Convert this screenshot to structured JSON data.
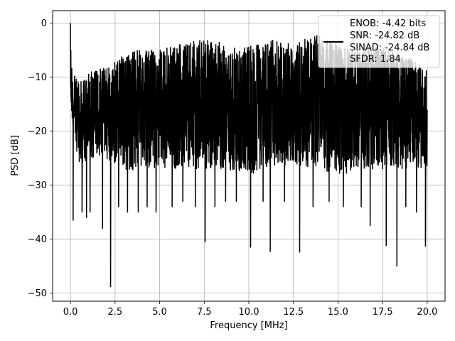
{
  "chart_data": {
    "type": "line",
    "xlabel": "Frequency [MHz]",
    "ylabel": "PSD [dB]",
    "xlim": [
      -1.0,
      21.0
    ],
    "ylim": [
      -51.5,
      2.3
    ],
    "xticks": [
      0.0,
      2.5,
      5.0,
      7.5,
      10.0,
      12.5,
      15.0,
      17.5,
      20.0
    ],
    "xtick_labels": [
      "0.0",
      "2.5",
      "5.0",
      "7.5",
      "10.0",
      "12.5",
      "15.0",
      "17.5",
      "20.0"
    ],
    "yticks": [
      0,
      -10,
      -20,
      -30,
      -40,
      -50
    ],
    "ytick_labels": [
      "0",
      "−10",
      "−20",
      "−30",
      "−40",
      "−50"
    ],
    "grid": true,
    "legend_placement": "upper right",
    "legend_lines": [
      "ENOB: -4.42 bits",
      "SNR: -24.82 dB",
      "SINAD: -24.84 dB",
      "SFDR: 1.84"
    ],
    "series": [
      {
        "color": "#000000",
        "x_range": [
          0.0,
          20.0
        ],
        "trace_description": "dense noise-like PSD trace, mostly oscillating between about -8 dB and -27 dB",
        "upper_envelope": [
          [
            0.0,
            0.0
          ],
          [
            0.1,
            -9
          ],
          [
            0.5,
            -11
          ],
          [
            1.0,
            -9
          ],
          [
            2.0,
            -8
          ],
          [
            3.0,
            -6
          ],
          [
            3.5,
            -5
          ],
          [
            5.0,
            -5
          ],
          [
            6.0,
            -4
          ],
          [
            7.5,
            -3
          ],
          [
            9.0,
            -4
          ],
          [
            10.5,
            -4
          ],
          [
            11.5,
            -3
          ],
          [
            12.5,
            -4
          ],
          [
            13.7,
            -2
          ],
          [
            15.0,
            -4
          ],
          [
            16.0,
            -5
          ],
          [
            17.0,
            -4
          ],
          [
            18.0,
            -5
          ],
          [
            19.0,
            -6
          ],
          [
            20.0,
            -9
          ]
        ],
        "lower_envelope": [
          [
            0.0,
            -16
          ],
          [
            0.5,
            -27
          ],
          [
            1.0,
            -25
          ],
          [
            2.0,
            -25
          ],
          [
            3.0,
            -28
          ],
          [
            5.0,
            -27
          ],
          [
            7.5,
            -27
          ],
          [
            10.0,
            -28
          ],
          [
            12.5,
            -26
          ],
          [
            15.0,
            -28
          ],
          [
            17.5,
            -27
          ],
          [
            20.0,
            -27
          ]
        ],
        "notable_dips": [
          [
            0.15,
            -36.5
          ],
          [
            0.65,
            -35
          ],
          [
            0.9,
            -36
          ],
          [
            1.1,
            -35
          ],
          [
            1.8,
            -38
          ],
          [
            2.25,
            -48.8
          ],
          [
            2.7,
            -34
          ],
          [
            3.2,
            -35
          ],
          [
            3.8,
            -35
          ],
          [
            4.3,
            -34
          ],
          [
            4.8,
            -35
          ],
          [
            5.7,
            -34
          ],
          [
            6.3,
            -33
          ],
          [
            7.0,
            -34
          ],
          [
            7.55,
            -40.5
          ],
          [
            8.1,
            -34
          ],
          [
            8.7,
            -33
          ],
          [
            9.3,
            -33
          ],
          [
            10.1,
            -41.5
          ],
          [
            10.8,
            -33
          ],
          [
            11.2,
            -42.3
          ],
          [
            12.0,
            -33
          ],
          [
            12.85,
            -42.4
          ],
          [
            13.6,
            -34
          ],
          [
            14.5,
            -33
          ],
          [
            15.3,
            -34
          ],
          [
            16.3,
            -34
          ],
          [
            16.8,
            -37.5
          ],
          [
            17.7,
            -41.2
          ],
          [
            18.3,
            -45
          ],
          [
            18.8,
            -34
          ],
          [
            19.4,
            -35
          ],
          [
            19.9,
            -41.3
          ]
        ]
      }
    ]
  }
}
